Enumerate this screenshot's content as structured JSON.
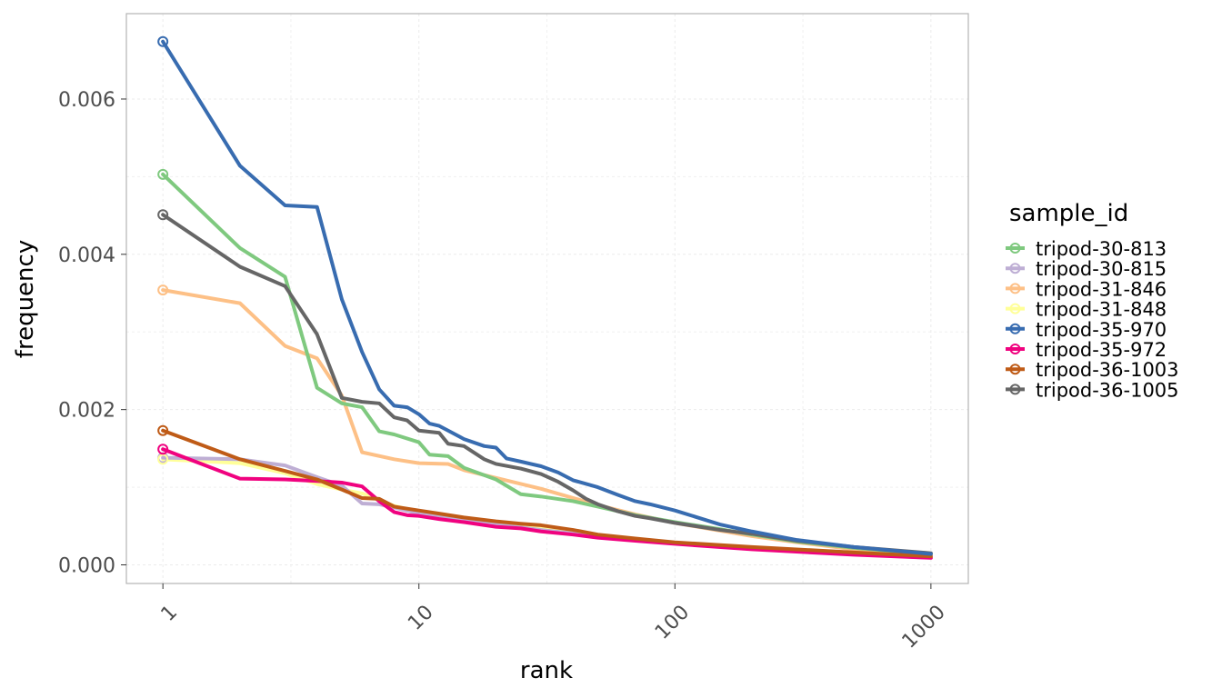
{
  "chart_data": {
    "type": "line",
    "xlabel": "rank",
    "ylabel": "frequency",
    "xscale": "log10",
    "xlim": [
      0.72,
      1400
    ],
    "ylim": [
      -0.00024,
      0.0071
    ],
    "x_ticks": [
      1,
      10,
      100,
      1000
    ],
    "x_tick_labels": [
      "1",
      "10",
      "100",
      "1000"
    ],
    "y_ticks": [
      0.0,
      0.002,
      0.004,
      0.006
    ],
    "y_tick_labels": [
      "0.000",
      "0.002",
      "0.004",
      "0.006"
    ],
    "grid": true,
    "legend": {
      "title": "sample_id",
      "position": "right"
    },
    "series": [
      {
        "name": "tripod-30-813",
        "color": "#7FC97F",
        "points": [
          [
            1,
            0.00503
          ],
          [
            2,
            0.00408
          ],
          [
            3,
            0.00371
          ],
          [
            4,
            0.00228
          ],
          [
            5,
            0.00208
          ],
          [
            6,
            0.00203
          ],
          [
            7,
            0.00172
          ],
          [
            8,
            0.00168
          ],
          [
            10,
            0.00158
          ],
          [
            11,
            0.00142
          ],
          [
            13,
            0.0014
          ],
          [
            15,
            0.00125
          ],
          [
            20,
            0.0011
          ],
          [
            25,
            0.00091
          ],
          [
            30,
            0.00088
          ],
          [
            40,
            0.00082
          ],
          [
            50,
            0.00075
          ],
          [
            70,
            0.00064
          ],
          [
            100,
            0.00055
          ],
          [
            150,
            0.00046
          ],
          [
            200,
            0.00039
          ],
          [
            300,
            0.0003
          ],
          [
            500,
            0.00022
          ],
          [
            1000,
            0.00014
          ]
        ]
      },
      {
        "name": "tripod-30-815",
        "color": "#BEAED4",
        "points": [
          [
            1,
            0.00138
          ],
          [
            2,
            0.00136
          ],
          [
            3,
            0.00128
          ],
          [
            4,
            0.00113
          ],
          [
            5,
            0.00102
          ],
          [
            6,
            0.00079
          ],
          [
            7,
            0.00078
          ],
          [
            8,
            0.00074
          ],
          [
            10,
            0.00066
          ],
          [
            15,
            0.00058
          ],
          [
            20,
            0.00052
          ],
          [
            30,
            0.00045
          ],
          [
            50,
            0.00037
          ],
          [
            100,
            0.00028
          ],
          [
            200,
            0.00021
          ],
          [
            500,
            0.00014
          ],
          [
            1000,
            9e-05
          ]
        ]
      },
      {
        "name": "tripod-31-846",
        "color": "#FDC086",
        "points": [
          [
            1,
            0.00354
          ],
          [
            2,
            0.00337
          ],
          [
            3,
            0.00282
          ],
          [
            4,
            0.00266
          ],
          [
            5,
            0.00218
          ],
          [
            6,
            0.00145
          ],
          [
            8,
            0.00136
          ],
          [
            10,
            0.00131
          ],
          [
            13,
            0.0013
          ],
          [
            15,
            0.00122
          ],
          [
            20,
            0.00112
          ],
          [
            30,
            0.00098
          ],
          [
            50,
            0.00077
          ],
          [
            70,
            0.00065
          ],
          [
            100,
            0.00054
          ],
          [
            150,
            0.00044
          ],
          [
            200,
            0.00037
          ],
          [
            300,
            0.00029
          ],
          [
            500,
            0.0002
          ],
          [
            1000,
            0.00013
          ]
        ]
      },
      {
        "name": "tripod-31-848",
        "color": "#FFFF99",
        "points": [
          [
            1,
            0.00136
          ],
          [
            2,
            0.00131
          ],
          [
            3,
            0.00118
          ],
          [
            4,
            0.00104
          ],
          [
            5,
            0.00097
          ],
          [
            6,
            0.00092
          ],
          [
            8,
            0.00076
          ],
          [
            10,
            0.00068
          ],
          [
            20,
            0.00055
          ],
          [
            30,
            0.00047
          ],
          [
            50,
            0.00038
          ],
          [
            100,
            0.00028
          ],
          [
            200,
            0.00021
          ],
          [
            500,
            0.00014
          ],
          [
            1000,
            0.0001
          ]
        ]
      },
      {
        "name": "tripod-35-970",
        "color": "#386CB0",
        "points": [
          [
            1,
            0.00674
          ],
          [
            2,
            0.00514
          ],
          [
            3,
            0.00463
          ],
          [
            4,
            0.00461
          ],
          [
            5,
            0.00342
          ],
          [
            6,
            0.00274
          ],
          [
            7,
            0.00226
          ],
          [
            8,
            0.00205
          ],
          [
            9,
            0.00203
          ],
          [
            10,
            0.00194
          ],
          [
            11,
            0.00182
          ],
          [
            12,
            0.00179
          ],
          [
            13,
            0.00173
          ],
          [
            15,
            0.00162
          ],
          [
            18,
            0.00153
          ],
          [
            20,
            0.00151
          ],
          [
            22,
            0.00137
          ],
          [
            25,
            0.00133
          ],
          [
            30,
            0.00127
          ],
          [
            35,
            0.00119
          ],
          [
            40,
            0.00109
          ],
          [
            50,
            0.001
          ],
          [
            60,
            0.0009
          ],
          [
            70,
            0.00082
          ],
          [
            80,
            0.00078
          ],
          [
            100,
            0.0007
          ],
          [
            120,
            0.00062
          ],
          [
            150,
            0.00052
          ],
          [
            200,
            0.00043
          ],
          [
            300,
            0.00032
          ],
          [
            500,
            0.00023
          ],
          [
            1000,
            0.00014
          ]
        ]
      },
      {
        "name": "tripod-35-972",
        "color": "#F0027F",
        "points": [
          [
            1,
            0.00149
          ],
          [
            2,
            0.00111
          ],
          [
            3,
            0.0011
          ],
          [
            4,
            0.00108
          ],
          [
            5,
            0.00106
          ],
          [
            6,
            0.00101
          ],
          [
            7,
            0.00082
          ],
          [
            8,
            0.00068
          ],
          [
            9,
            0.00064
          ],
          [
            10,
            0.00063
          ],
          [
            12,
            0.00059
          ],
          [
            15,
            0.00055
          ],
          [
            20,
            0.00049
          ],
          [
            25,
            0.00047
          ],
          [
            30,
            0.00043
          ],
          [
            40,
            0.00039
          ],
          [
            50,
            0.00035
          ],
          [
            70,
            0.00031
          ],
          [
            100,
            0.00027
          ],
          [
            200,
            0.0002
          ],
          [
            500,
            0.00013
          ],
          [
            1000,
            9e-05
          ]
        ]
      },
      {
        "name": "tripod-36-1003",
        "color": "#BF5B17",
        "points": [
          [
            1,
            0.00173
          ],
          [
            2,
            0.00136
          ],
          [
            3,
            0.00121
          ],
          [
            4,
            0.0011
          ],
          [
            5,
            0.00097
          ],
          [
            6,
            0.00086
          ],
          [
            7,
            0.00085
          ],
          [
            8,
            0.00075
          ],
          [
            10,
            0.0007
          ],
          [
            12,
            0.00066
          ],
          [
            15,
            0.00061
          ],
          [
            20,
            0.00056
          ],
          [
            25,
            0.00053
          ],
          [
            30,
            0.00051
          ],
          [
            40,
            0.00045
          ],
          [
            50,
            0.00039
          ],
          [
            70,
            0.00034
          ],
          [
            100,
            0.00029
          ],
          [
            200,
            0.00023
          ],
          [
            500,
            0.00016
          ],
          [
            1000,
            0.00011
          ]
        ]
      },
      {
        "name": "tripod-36-1005",
        "color": "#666666",
        "points": [
          [
            1,
            0.00451
          ],
          [
            2,
            0.00384
          ],
          [
            3,
            0.00359
          ],
          [
            4,
            0.00297
          ],
          [
            5,
            0.00215
          ],
          [
            6,
            0.0021
          ],
          [
            7,
            0.00208
          ],
          [
            8,
            0.0019
          ],
          [
            9,
            0.00186
          ],
          [
            10,
            0.00173
          ],
          [
            12,
            0.0017
          ],
          [
            13,
            0.00156
          ],
          [
            15,
            0.00153
          ],
          [
            18,
            0.00136
          ],
          [
            20,
            0.0013
          ],
          [
            25,
            0.00124
          ],
          [
            30,
            0.00117
          ],
          [
            35,
            0.00107
          ],
          [
            40,
            0.00096
          ],
          [
            45,
            0.00085
          ],
          [
            50,
            0.00078
          ],
          [
            60,
            0.00069
          ],
          [
            70,
            0.00063
          ],
          [
            80,
            0.0006
          ],
          [
            100,
            0.00054
          ],
          [
            150,
            0.00045
          ],
          [
            200,
            0.0004
          ],
          [
            300,
            0.00031
          ],
          [
            500,
            0.00023
          ],
          [
            1000,
            0.00015
          ]
        ]
      }
    ]
  }
}
